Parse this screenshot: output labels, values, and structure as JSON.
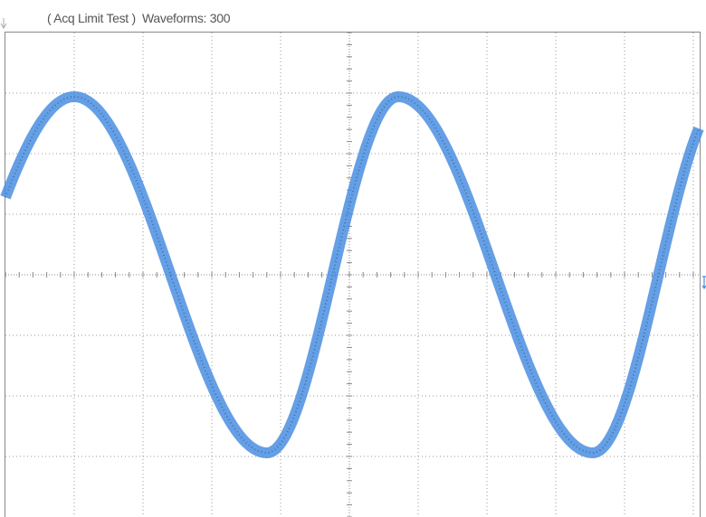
{
  "header": {
    "title": "( Acq Limit Test )  Waveforms: 300"
  }
}
